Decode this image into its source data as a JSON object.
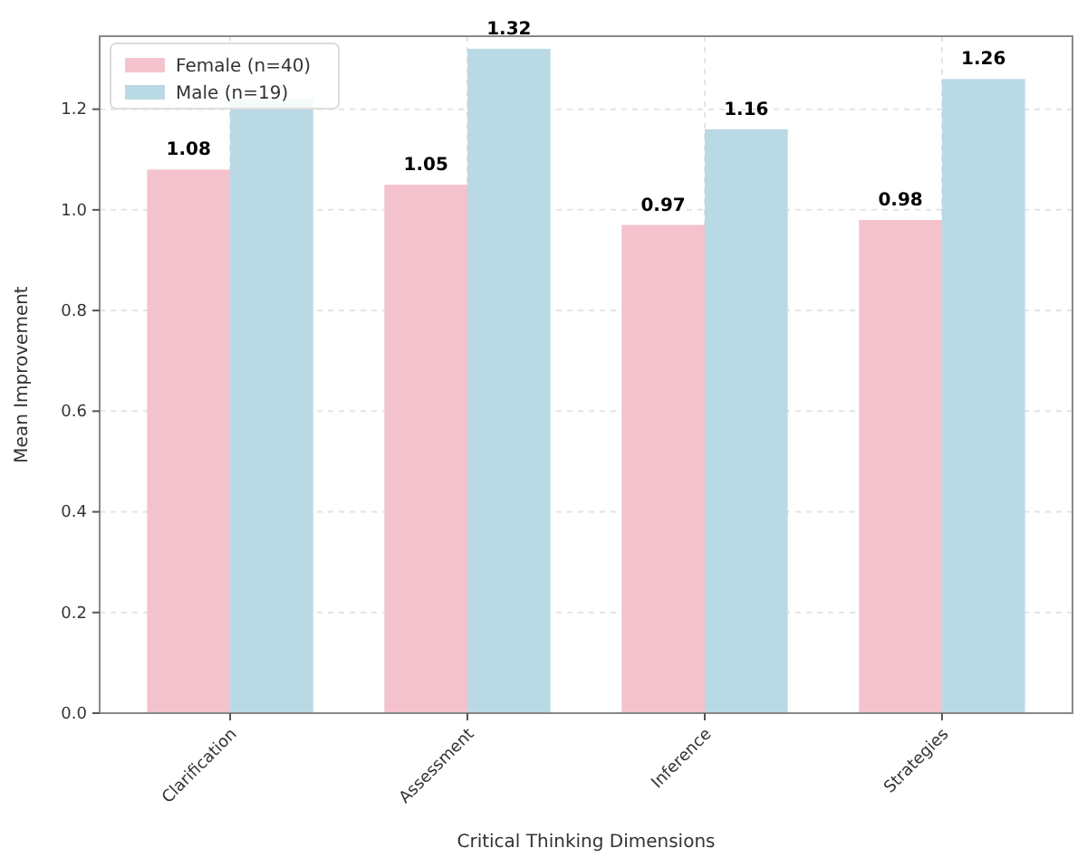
{
  "chart_data": {
    "type": "bar",
    "xlabel": "Critical Thinking Dimensions",
    "ylabel": "Mean Improvement",
    "categories": [
      "Clarification",
      "Assessment",
      "Inference",
      "Strategies"
    ],
    "series": [
      {
        "name": "Female (n=40)",
        "color": "#f4c2cd",
        "values": [
          1.08,
          1.05,
          0.97,
          0.98
        ],
        "value_labels": [
          "1.08",
          "1.05",
          "0.97",
          "0.98"
        ]
      },
      {
        "name": "Male (n=19)",
        "color": "#b9d9e4",
        "values": [
          1.22,
          1.32,
          1.16,
          1.26
        ],
        "value_labels": [
          null,
          "1.32",
          "1.16",
          "1.26"
        ]
      }
    ],
    "ylim": [
      0,
      1.345
    ],
    "yticks": [
      {
        "value": 0,
        "label": "0.0"
      },
      0.2,
      0.4,
      0.6,
      0.8,
      {
        "value": 1,
        "label": "1.0"
      },
      1.2
    ],
    "grid": true,
    "legend": "top left"
  }
}
